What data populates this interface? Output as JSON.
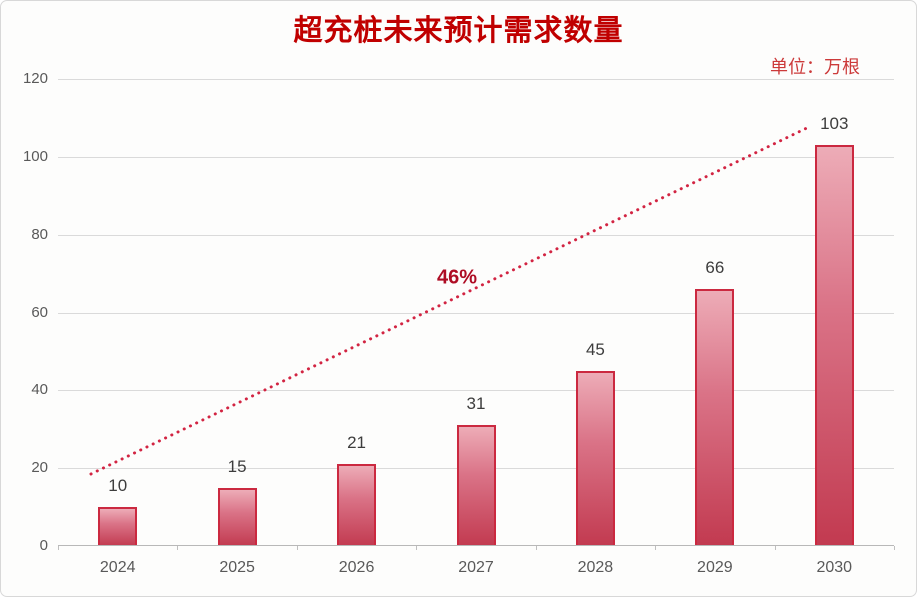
{
  "title": "超充桩未来预计需求数量",
  "unit_label": "单位：万根",
  "annotation": {
    "growth_rate": "46%"
  },
  "colors": {
    "title_red": "#c00000",
    "unit_red": "#cc3a3a",
    "bar_gradient_top": "#edacb7",
    "bar_gradient_bottom": "#c23a50",
    "bar_border": "#cb2940",
    "trend_line": "#d22442",
    "growth_label": "#ae0c24",
    "gridline": "#dadada",
    "axis_text": "#595959",
    "value_text": "#3d3d3d"
  },
  "chart_data": {
    "type": "bar",
    "title": "超充桩未来预计需求数量",
    "categories": [
      "2024",
      "2025",
      "2026",
      "2027",
      "2028",
      "2029",
      "2030"
    ],
    "values": [
      10,
      15,
      21,
      31,
      45,
      66,
      103
    ],
    "xlabel": "",
    "ylabel": "",
    "unit": "万根",
    "ylim": [
      0,
      120
    ],
    "yticks": [
      0,
      20,
      40,
      60,
      80,
      100,
      120
    ],
    "grid": "horizontal",
    "legend": "none",
    "data_labels": true,
    "trendline": {
      "label": "46%",
      "style": "dotted",
      "annotation_text": "46%"
    }
  }
}
